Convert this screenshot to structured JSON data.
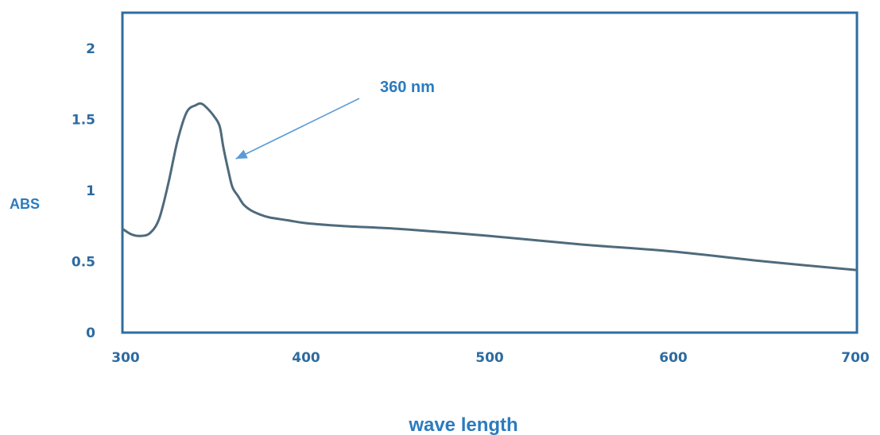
{
  "chart_data": {
    "type": "line",
    "title": "",
    "xlabel": "wave length",
    "ylabel": "ABS",
    "xlim": [
      300,
      700
    ],
    "ylim": [
      0,
      2.25
    ],
    "x_ticks": [
      300,
      400,
      500,
      600,
      700
    ],
    "y_ticks": [
      0,
      0.5,
      1,
      1.5,
      2
    ],
    "x_tick_labels": [
      "300",
      "400",
      "500",
      "600",
      "700"
    ],
    "y_tick_labels": [
      "0",
      "0.5",
      "1",
      "1.5",
      "2"
    ],
    "grid": false,
    "legend": "none",
    "series": [
      {
        "x": [
          300,
          305,
          310,
          315,
          320,
          325,
          330,
          335,
          340,
          343,
          346,
          350,
          353,
          355,
          358,
          360,
          363,
          366,
          370,
          375,
          380,
          390,
          400,
          420,
          450,
          500,
          550,
          600,
          650,
          700
        ],
        "y": [
          0.73,
          0.69,
          0.68,
          0.7,
          0.8,
          1.05,
          1.35,
          1.55,
          1.6,
          1.61,
          1.58,
          1.52,
          1.45,
          1.3,
          1.12,
          1.02,
          0.96,
          0.9,
          0.86,
          0.83,
          0.81,
          0.79,
          0.77,
          0.75,
          0.73,
          0.68,
          0.62,
          0.57,
          0.5,
          0.44
        ],
        "color": "#4f6a7c"
      }
    ],
    "annotations": [
      {
        "text": "360 nm",
        "x": 360,
        "y": 1.3
      }
    ],
    "colors": {
      "frame": "#2e6da2",
      "tick_label": "#2d6ba0",
      "axis_title": "#2b7bbf",
      "annotation": "#2b7bbf",
      "arrow": "#5b9bd5"
    }
  }
}
